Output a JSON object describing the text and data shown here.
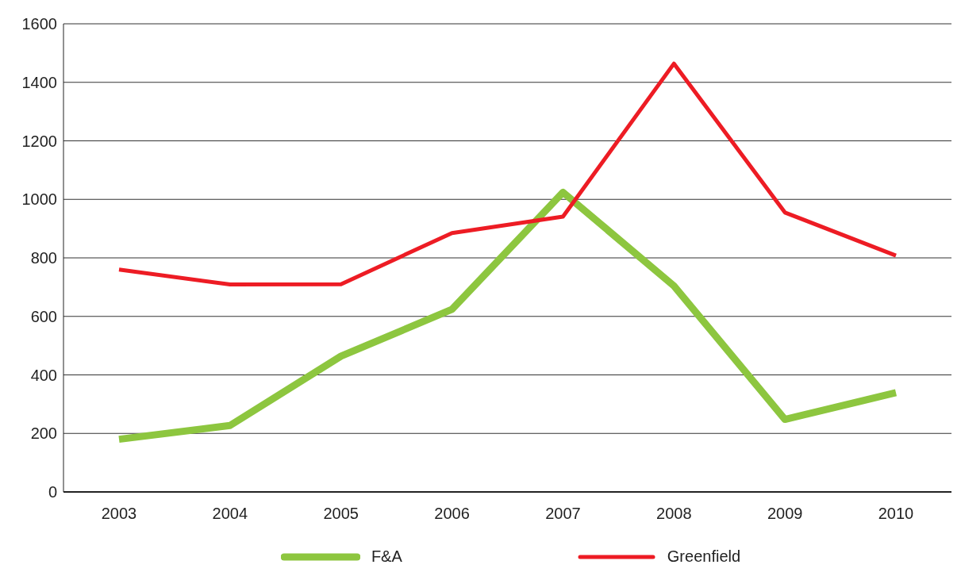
{
  "chart_data": {
    "type": "line",
    "categories": [
      "2003",
      "2004",
      "2005",
      "2006",
      "2007",
      "2008",
      "2009",
      "2010"
    ],
    "series": [
      {
        "name": "F&A",
        "color": "#8dc63f",
        "values": [
          180,
          227,
          464,
          624,
          1024,
          704,
          248,
          339
        ]
      },
      {
        "name": "Greenfield",
        "color": "#ed1c24",
        "values": [
          760,
          709,
          710,
          885,
          941,
          1464,
          955,
          808
        ]
      }
    ],
    "ylim": [
      0,
      1600
    ],
    "yticks": [
      0,
      200,
      400,
      600,
      800,
      1000,
      1200,
      1400,
      1600
    ],
    "grid": "y",
    "legend": "bottom",
    "marker": "none",
    "line_style": "solid"
  }
}
